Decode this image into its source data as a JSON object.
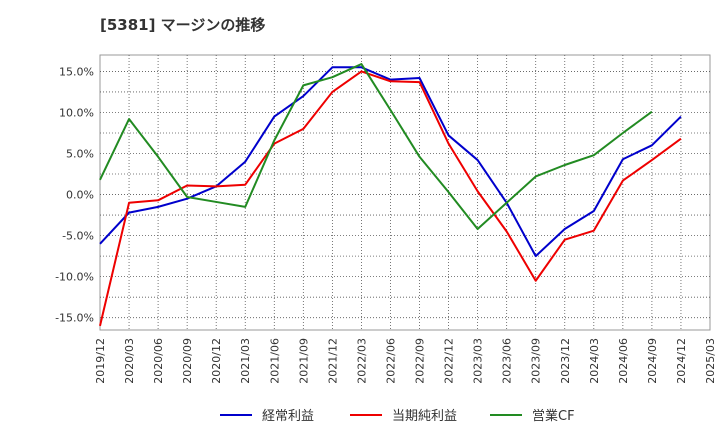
{
  "chart_data": {
    "type": "line",
    "title": "[5381]  マージンの推移",
    "x": [
      "2019/12",
      "2020/03",
      "2020/06",
      "2020/09",
      "2020/12",
      "2021/03",
      "2021/06",
      "2021/09",
      "2021/12",
      "2022/03",
      "2022/06",
      "2022/09",
      "2022/12",
      "2023/03",
      "2023/06",
      "2023/09",
      "2023/12",
      "2024/03",
      "2024/06",
      "2024/09",
      "2024/12",
      "2025/03"
    ],
    "ylim": [
      -16.5,
      17
    ],
    "yticks": [
      -15,
      -10,
      -5,
      0,
      5,
      10,
      15
    ],
    "ytick_labels": [
      "-15.0%",
      "-10.0%",
      "-5.0%",
      "0.0%",
      "5.0%",
      "10.0%",
      "15.0%"
    ],
    "grid": true,
    "legend_position": "bottom",
    "series": [
      {
        "name": "経常利益",
        "color": "#0000cc",
        "values": [
          -6.0,
          -2.2,
          -1.5,
          -0.5,
          1.0,
          4.0,
          9.5,
          12.0,
          15.5,
          15.5,
          14.0,
          14.2,
          7.2,
          4.2,
          -1.0,
          -7.5,
          -4.2,
          -2.0,
          4.3,
          6.0,
          9.5,
          null
        ]
      },
      {
        "name": "当期純利益",
        "color": "#ee0000",
        "values": [
          -16.0,
          -1.0,
          -0.7,
          1.1,
          1.0,
          1.2,
          6.2,
          8.0,
          12.5,
          15.0,
          13.8,
          13.7,
          6.2,
          0.4,
          -4.5,
          -10.5,
          -5.5,
          -4.4,
          1.7,
          4.2,
          6.8,
          null
        ]
      },
      {
        "name": "営業CF",
        "color": "#228b22",
        "values": [
          1.8,
          9.2,
          4.6,
          -0.3,
          -0.9,
          -1.5,
          6.6,
          13.3,
          14.3,
          15.9,
          10.3,
          4.6,
          0.3,
          -4.2,
          -1.0,
          2.2,
          3.6,
          4.8,
          7.5,
          10.1,
          null,
          null
        ]
      }
    ]
  }
}
